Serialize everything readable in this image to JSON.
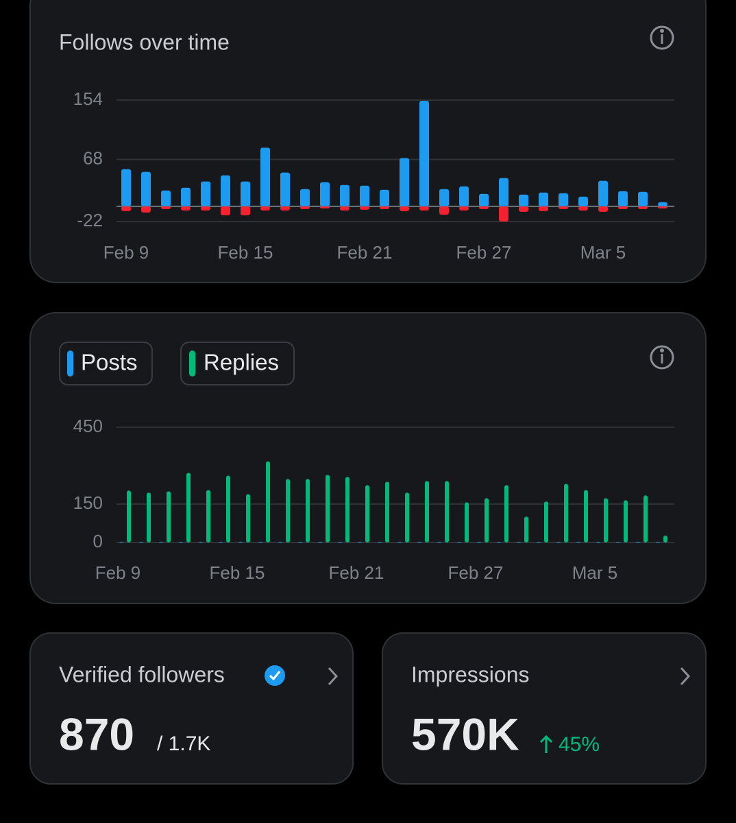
{
  "chart_data": [
    {
      "type": "bar",
      "title": "Follows over time",
      "categories": [
        "Feb 9",
        null,
        null,
        null,
        null,
        null,
        "Feb 15",
        null,
        null,
        null,
        null,
        null,
        "Feb 21",
        null,
        null,
        null,
        null,
        null,
        "Feb 27",
        null,
        null,
        null,
        null,
        null,
        "Mar 5",
        null,
        null,
        null
      ],
      "series": [
        {
          "color": "#1d9bf0",
          "values": [
            54,
            50,
            23,
            27,
            36,
            45,
            36,
            85,
            49,
            25,
            35,
            31,
            30,
            24,
            70,
            153,
            25,
            29,
            18,
            41,
            17,
            20,
            19,
            14,
            37,
            22,
            21,
            6
          ]
        },
        {
          "color": "#f4212e",
          "values": [
            -7,
            -9,
            -4,
            -6,
            -6,
            -13,
            -13,
            -6,
            -6,
            -4,
            -3,
            -6,
            -5,
            -4,
            -7,
            -6,
            -12,
            -6,
            -4,
            -22,
            -8,
            -7,
            -4,
            -6,
            -8,
            -4,
            -4,
            -3
          ]
        }
      ],
      "ylim": [
        -22,
        154
      ],
      "yticks": [
        -22,
        68,
        154
      ],
      "grid": true
    },
    {
      "type": "bar",
      "categories": [
        "Feb 9",
        null,
        null,
        null,
        null,
        null,
        "Feb 15",
        null,
        null,
        null,
        null,
        null,
        "Feb 21",
        null,
        null,
        null,
        null,
        null,
        "Feb 27",
        null,
        null,
        null,
        null,
        null,
        "Mar 5",
        null,
        null,
        null
      ],
      "series": [
        {
          "name": "Posts",
          "color": "#1d9bf0",
          "values": [
            3,
            3,
            3,
            3,
            3,
            3,
            3,
            3,
            3,
            3,
            3,
            3,
            3,
            3,
            3,
            3,
            3,
            3,
            3,
            3,
            3,
            3,
            3,
            3,
            3,
            3,
            3,
            3
          ]
        },
        {
          "name": "Replies",
          "color": "#00ba7c",
          "values": [
            203,
            195,
            200,
            272,
            205,
            261,
            189,
            317,
            248,
            248,
            264,
            256,
            224,
            237,
            195,
            240,
            240,
            157,
            173,
            224,
            101,
            160,
            229,
            205,
            173,
            165,
            184,
            27
          ]
        }
      ],
      "ylim": [
        0,
        450
      ],
      "yticks": [
        0,
        150,
        450
      ],
      "grid": true
    }
  ],
  "cards": [
    {
      "title": "Verified followers",
      "value": "870",
      "total": "/ 1.7K"
    },
    {
      "title": "Impressions",
      "value": "570K",
      "change": "45%"
    }
  ]
}
